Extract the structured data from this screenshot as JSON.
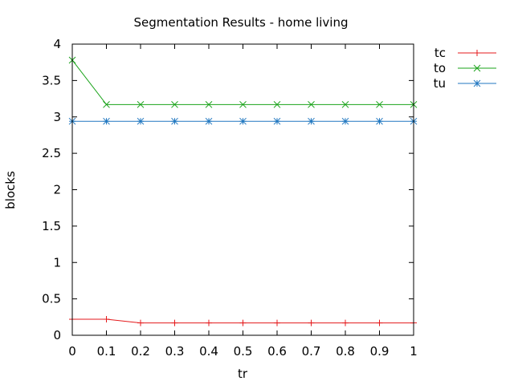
{
  "chart_data": {
    "type": "line",
    "title": "Segmentation Results - home living",
    "xlabel": "tr",
    "ylabel": "blocks",
    "xlim": [
      0,
      1
    ],
    "ylim": [
      0,
      4
    ],
    "x": [
      0,
      0.1,
      0.2,
      0.3,
      0.4,
      0.5,
      0.6,
      0.7,
      0.8,
      0.9,
      1
    ],
    "x_ticks": [
      "0",
      "0.1",
      "0.2",
      "0.3",
      "0.4",
      "0.5",
      "0.6",
      "0.7",
      "0.8",
      "0.9",
      "1"
    ],
    "y_ticks": [
      "0",
      "0.5",
      "1",
      "1.5",
      "2",
      "2.5",
      "3",
      "3.5",
      "4"
    ],
    "grid": false,
    "legend_position": "outside-top-right",
    "series": [
      {
        "name": "tc",
        "color": "#e41a1c",
        "marker": "plus",
        "values": [
          0.22,
          0.22,
          0.17,
          0.17,
          0.17,
          0.17,
          0.17,
          0.17,
          0.17,
          0.17,
          0.17
        ]
      },
      {
        "name": "to",
        "color": "#1aa31a",
        "marker": "cross",
        "values": [
          3.78,
          3.17,
          3.17,
          3.17,
          3.17,
          3.17,
          3.17,
          3.17,
          3.17,
          3.17,
          3.17
        ]
      },
      {
        "name": "tu",
        "color": "#2077c0",
        "marker": "star",
        "values": [
          2.94,
          2.94,
          2.94,
          2.94,
          2.94,
          2.94,
          2.94,
          2.94,
          2.94,
          2.94,
          2.94
        ]
      }
    ]
  }
}
